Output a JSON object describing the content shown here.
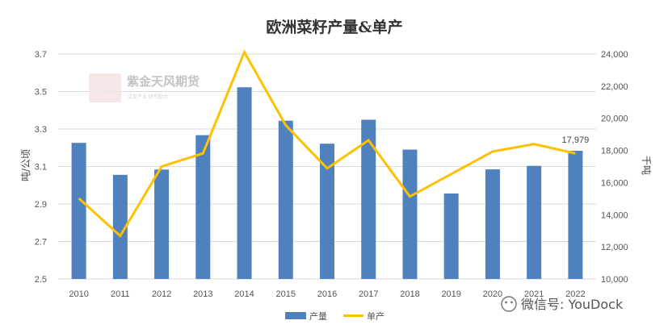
{
  "chart_data": {
    "type": "bar",
    "title": "欧洲菜籽产量&单产",
    "categories": [
      "2010",
      "2011",
      "2012",
      "2013",
      "2014",
      "2015",
      "2016",
      "2017",
      "2018",
      "2019",
      "2020",
      "2021",
      "2022"
    ],
    "series": [
      {
        "name": "产量",
        "type": "bar",
        "axis": "right",
        "color": "#4e81bd",
        "values": [
          18470,
          16480,
          16810,
          18950,
          21930,
          19850,
          18420,
          19910,
          18050,
          15320,
          16820,
          17040,
          17979
        ]
      },
      {
        "name": "单产",
        "type": "line",
        "axis": "left",
        "color": "#ffc000",
        "values": [
          2.93,
          2.73,
          3.1,
          3.17,
          3.71,
          3.32,
          3.09,
          3.24,
          2.94,
          3.06,
          3.18,
          3.22,
          3.17
        ]
      }
    ],
    "y_left": {
      "label": "吨/公顷",
      "min": 2.5,
      "max": 3.7,
      "ticks": [
        "2.5",
        "2.7",
        "2.9",
        "3.1",
        "3.3",
        "3.5",
        "3.7"
      ]
    },
    "y_right": {
      "label": "千吨",
      "min": 10000,
      "max": 24000,
      "ticks": [
        "10,000",
        "12,000",
        "14,000",
        "16,000",
        "18,000",
        "20,000",
        "22,000",
        "24,000"
      ]
    },
    "data_labels": [
      {
        "category": "2022",
        "text": "17,979"
      }
    ],
    "grid": true,
    "legend_position": "bottom"
  },
  "watermark": {
    "logo_text": "紫天风",
    "name": "紫金天风期货",
    "sub": "立足产业 研究驱动"
  },
  "footer": {
    "wechat": "微信号: YouDock"
  }
}
